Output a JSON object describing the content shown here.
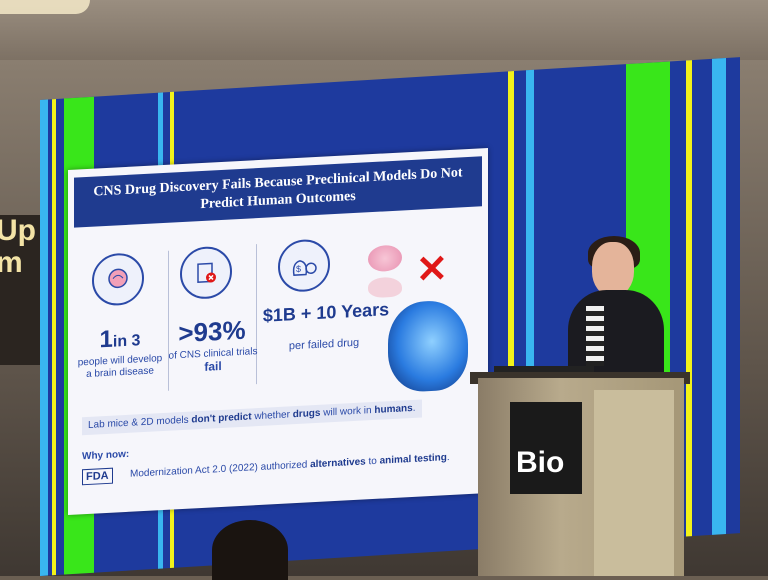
{
  "venue": {
    "left_banner_lines": [
      "Up",
      "m"
    ],
    "podium_logo": "Bio"
  },
  "slide": {
    "title_line1": "CNS Drug Discovery Fails Because Preclinical Models Do Not",
    "title_line2": "Predict Human Outcomes",
    "stats": [
      {
        "icon": "brain-icon",
        "value_a": "1",
        "value_b": "in 3",
        "caption_line1": "people will develop",
        "caption_line2": "a brain disease"
      },
      {
        "icon": "clipboard-x-icon",
        "value": ">93%",
        "caption_line1": "of CNS clinical trials",
        "caption_line2": "fail"
      },
      {
        "icon": "money-clock-icon",
        "value": "$1B + 10 Years",
        "caption": "per failed drug"
      }
    ],
    "banner": {
      "part1": "Lab mice & 2D models ",
      "part2": "don't predict",
      "part3": " whether ",
      "part4": "drugs",
      "part5": " will work in ",
      "part6": "humans",
      "part7": "."
    },
    "why_now": "Why now:",
    "fda_logo_text": "FDA",
    "fda_line": {
      "part1": "Modernization Act 2.0 (2022) authorized ",
      "part2": "alternatives",
      "part3": " to ",
      "part4": "animal testing",
      "part5": "."
    }
  },
  "colors": {
    "slide_title_bg": "#1f3b8f",
    "accent_blue": "#2b4aa8",
    "x_red": "#e01818",
    "screen_blue": "#1e3a9e",
    "stripe_green": "#39e61a",
    "stripe_yellow": "#f2f21a",
    "stripe_cyan": "#39b6f0"
  }
}
